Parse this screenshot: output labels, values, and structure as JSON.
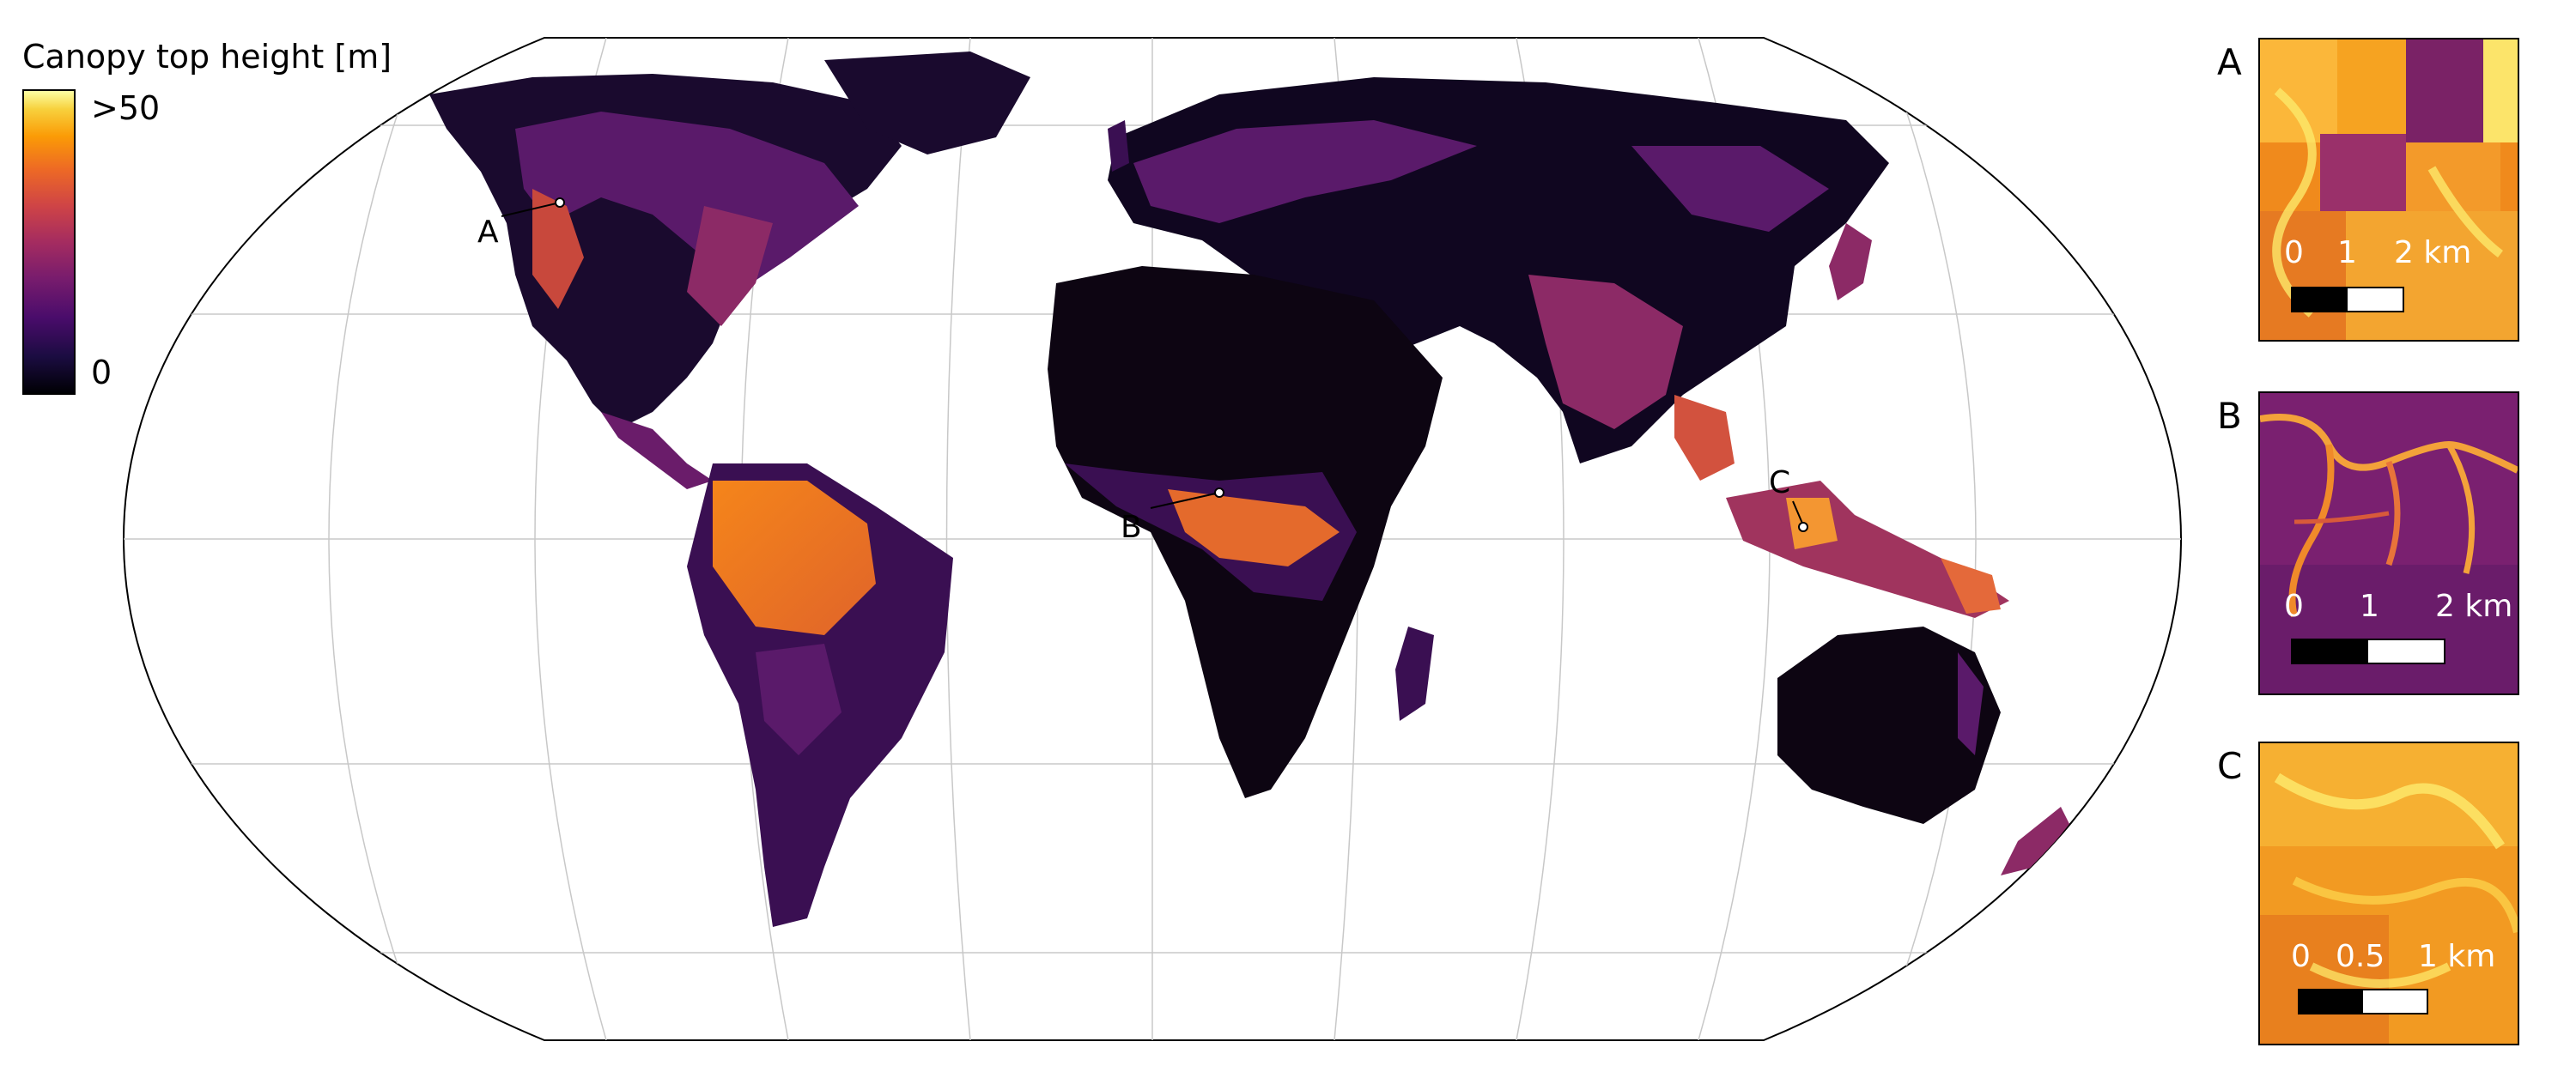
{
  "legend": {
    "title": "Canopy top height [m]",
    "max_label": ">50",
    "min_label": "0",
    "colormap": "inferno",
    "colors": [
      "#000004",
      "#4a0c6b",
      "#a52c60",
      "#ed6925",
      "#fb9b06",
      "#fcffa4"
    ]
  },
  "map": {
    "projection": "Robinson",
    "graticule": true,
    "site_labels": [
      "A",
      "B",
      "C"
    ]
  },
  "panels": [
    {
      "letter": "A",
      "scale_labels": [
        "0",
        "1",
        "2 km"
      ]
    },
    {
      "letter": "B",
      "scale_labels": [
        "0",
        "1",
        "2 km"
      ]
    },
    {
      "letter": "C",
      "scale_labels": [
        "0",
        "0.5",
        "1 km"
      ]
    }
  ]
}
